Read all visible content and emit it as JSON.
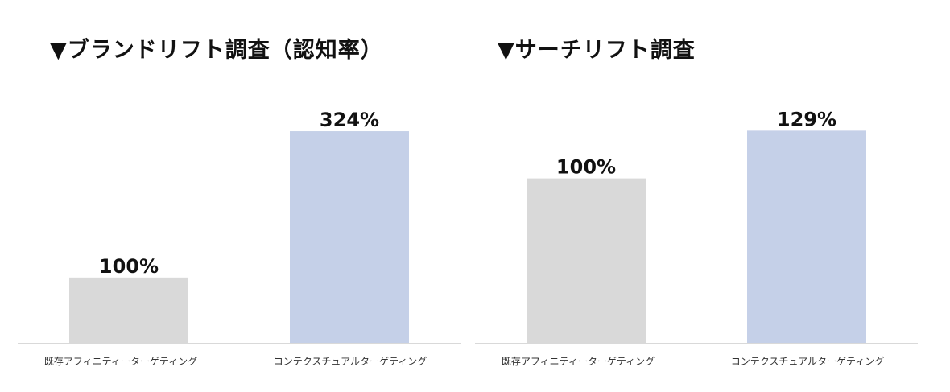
{
  "chart_data": [
    {
      "type": "bar",
      "title": "▼ブランドリフト調査（認知率）",
      "categories": [
        "既存アフィニティーターゲティング",
        "コンテクスチュアルターゲティング"
      ],
      "values": [
        100,
        324
      ],
      "value_labels": [
        "100%",
        "324%"
      ],
      "colors": [
        "#d9d9d9",
        "#c5d0e8"
      ],
      "ylim": [
        0,
        345
      ],
      "grid": false,
      "legend": "none"
    },
    {
      "type": "bar",
      "title": "▼サーチリフト調査",
      "categories": [
        "既存アフィニティーターゲティング",
        "コンテクスチュアルターゲティング"
      ],
      "values": [
        100,
        129
      ],
      "value_labels": [
        "100%",
        "129%"
      ],
      "colors": [
        "#d9d9d9",
        "#c5d0e8"
      ],
      "ylim": [
        0,
        137
      ],
      "grid": false,
      "legend": "none"
    }
  ]
}
